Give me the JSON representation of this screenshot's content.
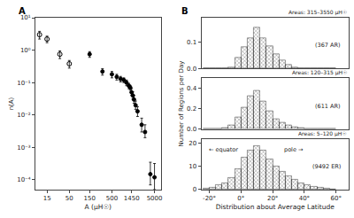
{
  "chart_data": [
    {
      "type": "scatter",
      "title": "A",
      "xlabel": "A (μH☉)",
      "ylabel": "n(A)",
      "log": true,
      "grid": false,
      "xlim": [
        8,
        7000
      ],
      "ylim": [
        5e-05,
        10
      ],
      "xticks": [
        15,
        50,
        150,
        500,
        1450,
        5000
      ],
      "yticks": [
        {
          "value": 0.0001,
          "label": "10⁻⁴"
        },
        {
          "value": 0.001,
          "label": "10⁻³"
        },
        {
          "value": 0.01,
          "label": "10⁻²"
        },
        {
          "value": 0.1,
          "label": "10⁻¹"
        },
        {
          "value": 1,
          "label": "10⁰"
        },
        {
          "value": 10,
          "label": "10¹"
        }
      ],
      "series": [
        {
          "marker": "open_circle",
          "color": "#000000",
          "x": [
            10,
            15,
            30,
            50
          ],
          "values": [
            3.0,
            2.2,
            0.75,
            0.38
          ],
          "error_low": [
            0.8,
            0.5,
            0.2,
            0.1
          ],
          "error_high": [
            0.8,
            0.5,
            0.2,
            0.1
          ]
        },
        {
          "marker": "circle",
          "color": "#000000",
          "x": [
            150,
            300,
            500,
            650,
            800,
            950,
            1100,
            1250,
            1350,
            1450,
            1550,
            1650,
            1800,
            2000,
            2500,
            3000,
            4000,
            5000
          ],
          "values": [
            0.75,
            0.22,
            0.18,
            0.15,
            0.13,
            0.12,
            0.1,
            0.08,
            0.07,
            0.05,
            0.04,
            0.03,
            0.02,
            0.013,
            0.005,
            0.003,
            0.00015,
            0.00012
          ],
          "error_low": [
            0.15,
            0.05,
            0.04,
            0.03,
            0.025,
            0.02,
            0.02,
            0.015,
            0.012,
            0.01,
            0.009,
            0.007,
            0.005,
            0.004,
            0.002,
            0.001,
            8e-05,
            7e-05
          ],
          "error_high": [
            0.15,
            0.05,
            0.04,
            0.03,
            0.025,
            0.02,
            0.02,
            0.015,
            0.012,
            0.015,
            0.012,
            0.01,
            0.007,
            0.005,
            0.003,
            0.002,
            0.0002,
            0.0002
          ]
        }
      ]
    },
    {
      "type": "bar",
      "title": "B",
      "subtitle": "Areas: 315–3550 μH☉",
      "annotations": [
        "(367 AR)"
      ],
      "x": [
        -22,
        -18,
        -14,
        -10,
        -6,
        -2,
        2,
        6,
        10,
        14,
        18,
        22,
        26,
        30,
        34,
        38,
        42,
        46,
        50,
        54,
        58
      ],
      "values": [
        0,
        0,
        0,
        0,
        0.005,
        0.04,
        0.08,
        0.115,
        0.155,
        0.115,
        0.085,
        0.055,
        0.03,
        0.013,
        0.005,
        0.003,
        0.002,
        0,
        0,
        0,
        0
      ],
      "color": "#c8c8c8",
      "xlim": [
        -25,
        68
      ],
      "ylim": [
        0,
        0.19
      ],
      "yticks": [
        {
          "value": 0,
          "label": "0.0"
        },
        0.1
      ],
      "tick_labels": "y",
      "grid": false
    },
    {
      "type": "bar",
      "subtitle": "Areas: 120–315 μH☉",
      "annotations": [
        "(611 AR)"
      ],
      "ylabel": "Number of Regions per Day",
      "x": [
        -22,
        -18,
        -14,
        -10,
        -6,
        -2,
        2,
        6,
        10,
        14,
        18,
        22,
        26,
        30,
        34,
        38,
        42,
        46,
        50,
        54,
        58
      ],
      "values": [
        0,
        0.002,
        0.005,
        0.01,
        0.04,
        0.12,
        0.21,
        0.33,
        0.38,
        0.27,
        0.175,
        0.1,
        0.065,
        0.035,
        0.02,
        0.01,
        0.005,
        0.005,
        0.002,
        0,
        0
      ],
      "color": "#c8c8c8",
      "xlim": [
        -25,
        68
      ],
      "ylim": [
        0,
        0.5
      ],
      "yticks": [
        {
          "value": 0,
          "label": "0.0"
        },
        0.2,
        0.4
      ],
      "tick_labels": "y",
      "grid": false
    },
    {
      "type": "bar",
      "subtitle": "Areas: 5–120 μH☉",
      "annotations": [
        "(9492 ER)",
        "← equator",
        "pole →"
      ],
      "xlabel": "Distribution about Average Latitude",
      "x": [
        -22,
        -18,
        -14,
        -10,
        -6,
        -2,
        2,
        6,
        10,
        14,
        18,
        22,
        26,
        30,
        34,
        38,
        42,
        46,
        50,
        54,
        58
      ],
      "values": [
        0.5,
        1,
        2,
        3,
        5,
        9,
        14,
        17,
        19,
        17,
        13,
        10,
        8,
        6,
        4.5,
        3,
        2,
        1.5,
        1,
        0.5,
        0
      ],
      "color": "#c8c8c8",
      "xlim": [
        -25,
        68
      ],
      "ylim": [
        0,
        22
      ],
      "xticks": [
        {
          "value": -20,
          "label": "-20°"
        },
        {
          "value": 0,
          "label": "0°"
        },
        {
          "value": 20,
          "label": "20°"
        },
        {
          "value": 40,
          "label": "40°"
        },
        {
          "value": 60,
          "label": "60°"
        }
      ],
      "yticks": [
        0,
        10,
        20
      ],
      "grid": false
    }
  ]
}
